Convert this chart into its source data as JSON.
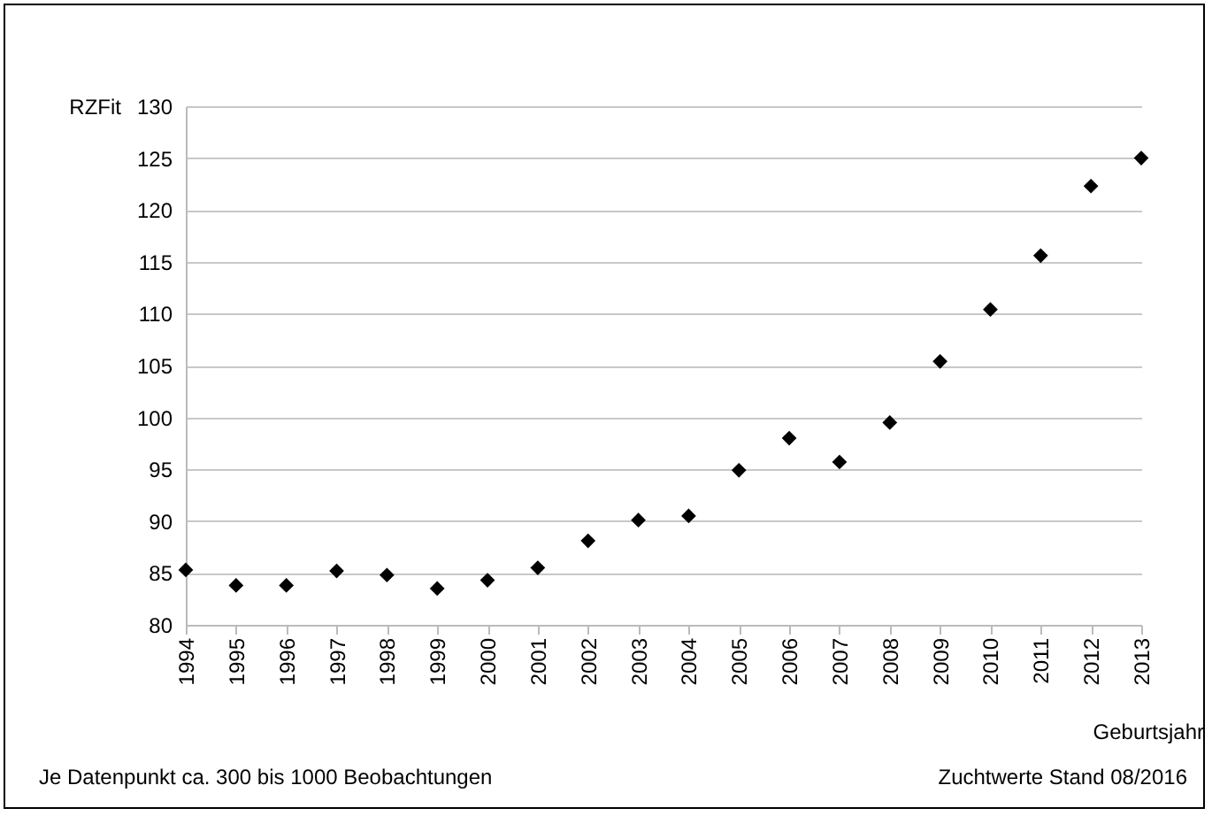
{
  "chart_data": {
    "type": "scatter",
    "ylabel": "RZFit",
    "xlabel": "Geburtsjahr",
    "annotations": [
      "Je Datenpunkt ca. 300 bis 1000 Beobachtungen",
      "Zuchtwerte Stand 08/2016"
    ],
    "categories": [
      "1994",
      "1995",
      "1996",
      "1997",
      "1998",
      "1999",
      "2000",
      "2001",
      "2002",
      "2003",
      "2004",
      "2005",
      "2006",
      "2007",
      "2008",
      "2009",
      "2010",
      "2011",
      "2012",
      "2013"
    ],
    "series": [
      {
        "color": "#000000",
        "values": [
          85.3,
          83.8,
          83.8,
          85.2,
          84.8,
          83.5,
          84.3,
          85.5,
          88.1,
          90.1,
          90.5,
          94.9,
          98.0,
          95.7,
          99.5,
          105.4,
          110.4,
          115.6,
          122.3,
          125.0
        ]
      }
    ],
    "ylim": [
      80,
      130
    ],
    "yticks": [
      80,
      85,
      90,
      95,
      100,
      105,
      110,
      115,
      120,
      125,
      130
    ],
    "grid": "y",
    "marker": "diamond",
    "legend": false
  }
}
